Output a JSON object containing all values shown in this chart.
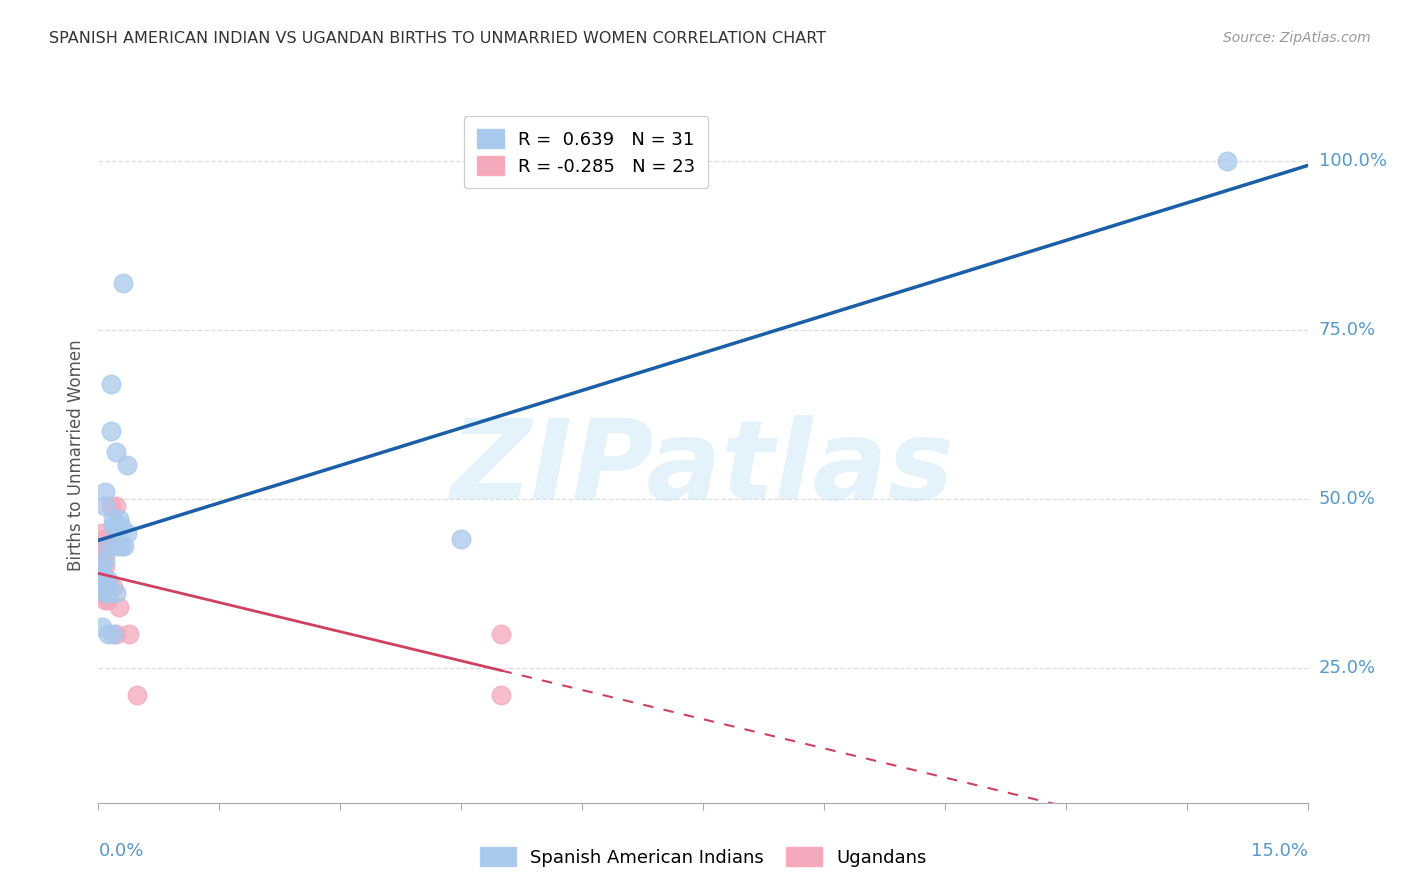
{
  "title": "SPANISH AMERICAN INDIAN VS UGANDAN BIRTHS TO UNMARRIED WOMEN CORRELATION CHART",
  "source": "Source: ZipAtlas.com",
  "ylabel": "Births to Unmarried Women",
  "ytick_values": [
    25.0,
    50.0,
    75.0,
    100.0
  ],
  "ytick_labels": [
    "25.0%",
    "50.0%",
    "75.0%",
    "100.0%"
  ],
  "xmin": 0.0,
  "xmax": 15.0,
  "ymin": 5.0,
  "ymax": 108.0,
  "r_blue": 0.639,
  "n_blue": 31,
  "r_pink": -0.285,
  "n_pink": 23,
  "legend_label_blue": "Spanish American Indians",
  "legend_label_pink": "Ugandans",
  "watermark_text": "ZIPatlas",
  "blue_dot_color": "#A8C8EC",
  "pink_dot_color": "#F4A8BC",
  "blue_line_color": "#1A5FA8",
  "pink_line_color": "#D04060",
  "grid_color": "#DDDDDD",
  "title_color": "#333333",
  "source_color": "#999999",
  "axis_label_color": "#5599CC",
  "ylabel_color": "#555555",
  "blue_scatter_x": [
    0.3,
    0.15,
    0.15,
    0.22,
    0.35,
    0.08,
    0.08,
    0.18,
    0.25,
    0.18,
    0.22,
    0.28,
    0.35,
    0.12,
    0.22,
    0.28,
    0.32,
    0.08,
    0.05,
    0.05,
    0.08,
    0.12,
    0.05,
    0.08,
    0.12,
    0.22,
    0.05,
    0.12,
    0.18,
    4.5,
    14.0
  ],
  "blue_scatter_y": [
    82.0,
    67.0,
    60.0,
    57.0,
    55.0,
    51.0,
    49.0,
    47.0,
    47.0,
    46.0,
    46.0,
    46.0,
    45.0,
    43.0,
    43.0,
    43.0,
    43.0,
    41.0,
    40.0,
    39.0,
    38.0,
    38.0,
    37.0,
    36.0,
    36.0,
    36.0,
    31.0,
    30.0,
    30.0,
    44.0,
    100.0
  ],
  "pink_scatter_x": [
    0.05,
    0.08,
    0.08,
    0.12,
    0.05,
    0.08,
    0.05,
    0.08,
    0.15,
    0.22,
    0.05,
    0.08,
    0.12,
    0.18,
    0.05,
    0.08,
    0.12,
    0.25,
    0.22,
    0.38,
    0.48,
    5.0,
    5.0
  ],
  "pink_scatter_y": [
    45.0,
    44.0,
    43.0,
    43.0,
    42.0,
    42.0,
    41.0,
    40.0,
    49.0,
    49.0,
    38.0,
    37.0,
    37.0,
    37.0,
    36.0,
    35.0,
    35.0,
    34.0,
    30.0,
    30.0,
    21.0,
    30.0,
    21.0
  ]
}
